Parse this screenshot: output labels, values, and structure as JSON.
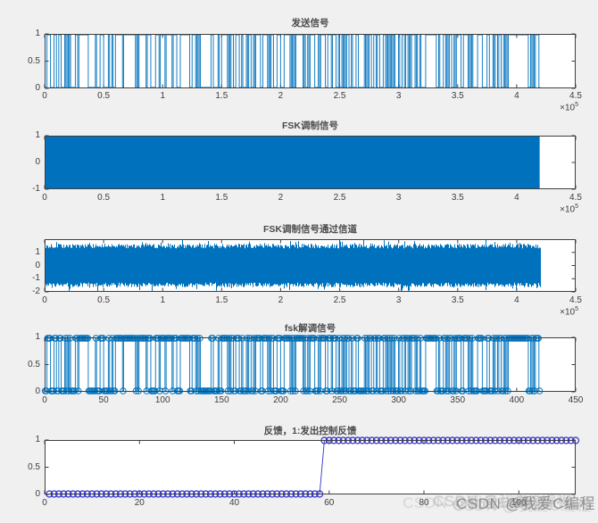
{
  "figure": {
    "background": "#f0f0f0",
    "plot_background": "#ffffff",
    "axis_color": "#3f3f3f",
    "tick_label_color": "#3d3d3d",
    "title_color": "#4a4a4a",
    "matlab_blue": "#0072BD",
    "marker_blue_violet": "#3232CD",
    "watermark_text": "CSDN @我爱C编程"
  },
  "chart_data": [
    {
      "type": "line",
      "render": "binary-waveform",
      "title": "发送信号",
      "series_color": "#0072BD",
      "xlim": [
        0,
        450000
      ],
      "ylim": [
        0,
        1
      ],
      "xmax_value": 4.5,
      "xtick_values": [
        0,
        0.5,
        1,
        1.5,
        2,
        2.5,
        3,
        3.5,
        4,
        4.5
      ],
      "xtick_labels": [
        "0",
        "0.5",
        "1",
        "1.5",
        "2",
        "2.5",
        "3",
        "3.5",
        "4",
        "4.5"
      ],
      "yticks": [
        {
          "v": 0,
          "label": "0"
        },
        {
          "v": 0.5,
          "label": "0.5"
        },
        {
          "v": 1,
          "label": "1"
        }
      ],
      "x_scale": {
        "base": "×10",
        "exp": "5"
      },
      "n_symbols": 420,
      "signal_end_frac": 0.933,
      "seed": 7,
      "description": "random binary sequence, 420 symbols, data ends at 4.2e5 samples"
    },
    {
      "type": "area",
      "render": "filled-block",
      "title": "FSK调制信号",
      "series_color": "#0072BD",
      "xlim": [
        0,
        450000
      ],
      "ylim": [
        -1,
        1
      ],
      "xmax_value": 4.5,
      "xtick_values": [
        0,
        0.5,
        1,
        1.5,
        2,
        2.5,
        3,
        3.5,
        4,
        4.5
      ],
      "xtick_labels": [
        "0",
        "0.5",
        "1",
        "1.5",
        "2",
        "2.5",
        "3",
        "3.5",
        "4",
        "4.5"
      ],
      "yticks": [
        {
          "v": -1,
          "label": "-1"
        },
        {
          "v": 0,
          "label": "0"
        },
        {
          "v": 1,
          "label": "1"
        }
      ],
      "x_scale": {
        "base": "×10",
        "exp": "5"
      },
      "signal_end_frac": 0.933,
      "amplitude": 1,
      "description": "FSK carrier oscillating between -1 and 1, solid fill to 4.2e5 samples"
    },
    {
      "type": "line",
      "render": "noise-band",
      "title": "FSK调制信号通过信道",
      "series_color": "#0072BD",
      "xlim": [
        0,
        450000
      ],
      "ylim": [
        -2,
        2
      ],
      "xmax_value": 4.5,
      "xtick_values": [
        0,
        0.5,
        1,
        1.5,
        2,
        2.5,
        3,
        3.5,
        4,
        4.5
      ],
      "xtick_labels": [
        "0",
        "0.5",
        "1",
        "1.5",
        "2",
        "2.5",
        "3",
        "3.5",
        "4",
        "4.5"
      ],
      "yticks": [
        {
          "v": -2,
          "label": "-2"
        },
        {
          "v": -1,
          "label": "-1"
        },
        {
          "v": 0,
          "label": "0"
        },
        {
          "v": 1,
          "label": "1"
        }
      ],
      "x_scale": {
        "base": "×10",
        "exp": "5"
      },
      "signal_end_frac": 0.933,
      "noise_core": 1.3,
      "noise_peak": 1.95,
      "seed": 13,
      "description": "FSK signal plus channel noise, envelope ~±1.3 core with spikes to ±1.95"
    },
    {
      "type": "line",
      "render": "binary-markers",
      "title": "fsk解调信号",
      "series_color": "#0072BD",
      "xlim": [
        0,
        450
      ],
      "ylim": [
        0,
        1
      ],
      "xmax_value": 450,
      "xtick_values": [
        0,
        50,
        100,
        150,
        200,
        250,
        300,
        350,
        400,
        450
      ],
      "xtick_labels": [
        "0",
        "50",
        "100",
        "150",
        "200",
        "250",
        "300",
        "350",
        "400",
        "450"
      ],
      "yticks": [
        {
          "v": 0,
          "label": "0"
        },
        {
          "v": 0.5,
          "label": "0.5"
        },
        {
          "v": 1,
          "label": "1"
        }
      ],
      "x_scale": null,
      "n_symbols": 420,
      "signal_end_frac": 0.933,
      "seed": 7,
      "marker": "o",
      "description": "demodulated binary sequence, 420 symbols with circle markers at 0 and 1"
    },
    {
      "type": "line",
      "render": "step-markers",
      "title": "反馈，1:发出控制反馈",
      "series_color": "#3232CD",
      "xlim": [
        0,
        112
      ],
      "ylim": [
        0,
        1
      ],
      "xmax_value": 112,
      "xtick_values": [
        0,
        20,
        40,
        60,
        80,
        100
      ],
      "xtick_labels": [
        "0",
        "20",
        "40",
        "60",
        "80",
        "100"
      ],
      "yticks": [
        {
          "v": 0,
          "label": "0"
        },
        {
          "v": 0.5,
          "label": "0.5"
        },
        {
          "v": 1,
          "label": "1"
        }
      ],
      "x_scale": null,
      "step_at": 58,
      "n_points": 112,
      "marker": "o",
      "description": "feedback flag: 0 for frames 1-58, steps to 1 for frames 59-112"
    }
  ]
}
